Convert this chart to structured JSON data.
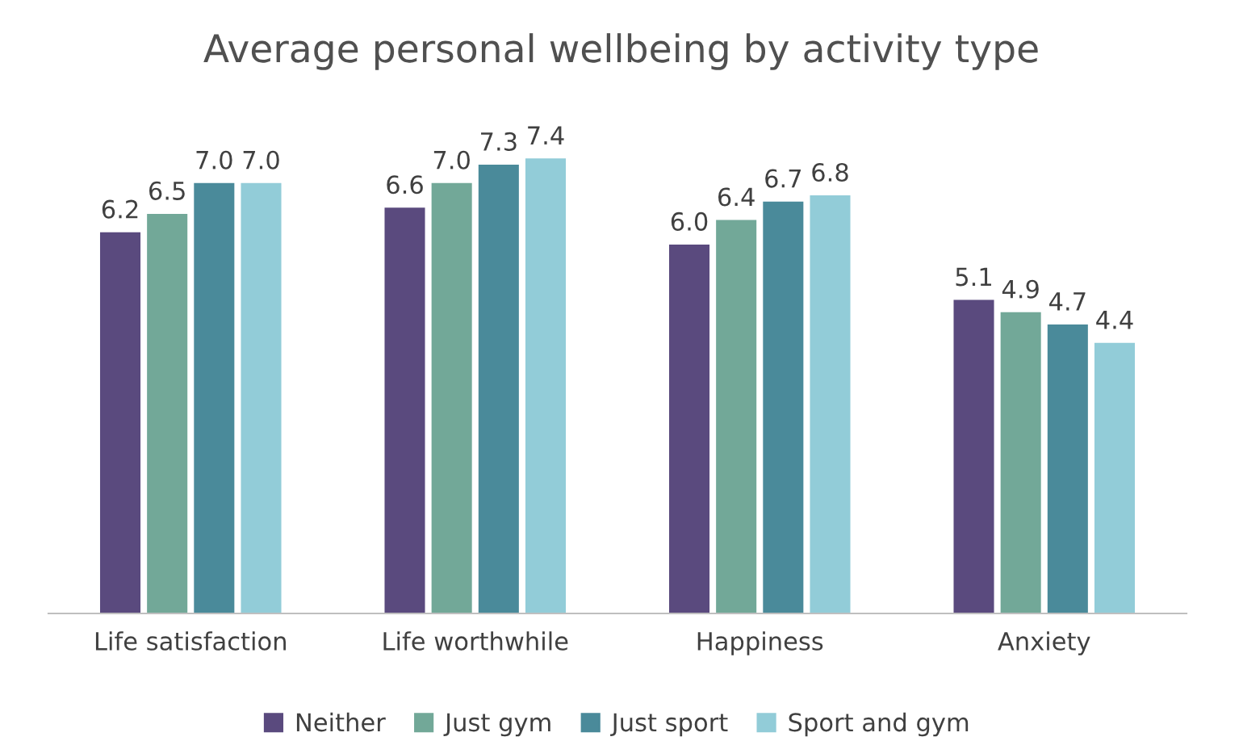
{
  "chart_data": {
    "type": "bar",
    "title": "Average personal wellbeing by activity type",
    "categories": [
      "Life satisfaction",
      "Life worthwhile",
      "Happiness",
      "Anxiety"
    ],
    "series": [
      {
        "name": "Neither",
        "color": "#5a4a7e",
        "values": [
          6.2,
          6.6,
          6.0,
          5.1
        ],
        "value_labels": [
          "6.2",
          "6.6",
          "6.0",
          "5.1"
        ]
      },
      {
        "name": "Just gym",
        "color": "#72a898",
        "values": [
          6.5,
          7.0,
          6.4,
          4.9
        ],
        "value_labels": [
          "6.5",
          "7.0",
          "6.4",
          "4.9"
        ]
      },
      {
        "name": "Just sport",
        "color": "#4a8a9a",
        "values": [
          7.0,
          7.3,
          6.7,
          4.7
        ],
        "value_labels": [
          "7.0",
          "7.3",
          "6.7",
          "4.7"
        ]
      },
      {
        "name": "Sport and gym",
        "color": "#92ccd8",
        "values": [
          7.0,
          7.4,
          6.8,
          4.4
        ],
        "value_labels": [
          "7.0",
          "7.4",
          "6.8",
          "4.4"
        ]
      }
    ],
    "legend": "bottom"
  }
}
